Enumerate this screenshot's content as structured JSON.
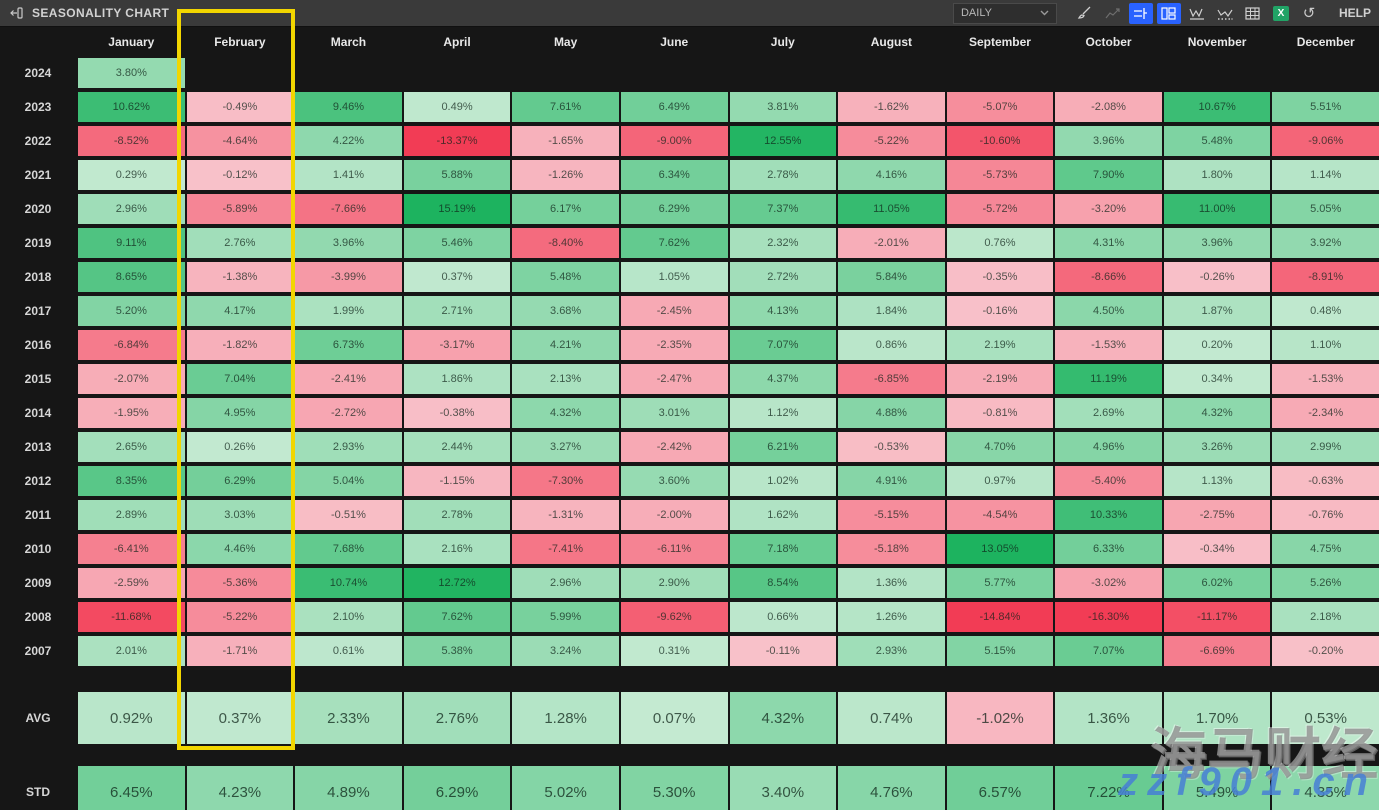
{
  "topbar": {
    "title": "SEASONALITY CHART",
    "timeframe": "DAILY",
    "help_label": "HELP",
    "icons": [
      {
        "name": "brush-icon",
        "active": false
      },
      {
        "name": "trend-line-icon",
        "active": false
      },
      {
        "name": "bar-settings-icon",
        "active": true
      },
      {
        "name": "column-layout-icon",
        "active": true
      },
      {
        "name": "line-chart-icon",
        "active": false
      },
      {
        "name": "scatter-chart-icon",
        "active": false
      },
      {
        "name": "table-icon",
        "active": false
      },
      {
        "name": "excel-export-icon",
        "active": false
      },
      {
        "name": "reset-icon",
        "active": false
      }
    ]
  },
  "colors": {
    "accent_blue": "#2962ff",
    "highlight_yellow": "#f2d600",
    "excel_green": "#21a366",
    "positive_strong": "#1db35f",
    "positive_light": "#c5ead2",
    "negative_strong": "#f23c55",
    "negative_light": "#f8c2ca"
  },
  "chart_data": {
    "type": "heatmap",
    "title": "SEASONALITY CHART",
    "highlighted_column": "February",
    "columns": [
      "January",
      "February",
      "March",
      "April",
      "May",
      "June",
      "July",
      "August",
      "September",
      "October",
      "November",
      "December"
    ],
    "rows": [
      {
        "label": "2024",
        "values": [
          "3.80%",
          null,
          null,
          null,
          null,
          null,
          null,
          null,
          null,
          null,
          null,
          null
        ]
      },
      {
        "label": "2023",
        "values": [
          "10.62%",
          "-0.49%",
          "9.46%",
          "0.49%",
          "7.61%",
          "6.49%",
          "3.81%",
          "-1.62%",
          "-5.07%",
          "-2.08%",
          "10.67%",
          "5.51%"
        ]
      },
      {
        "label": "2022",
        "values": [
          "-8.52%",
          "-4.64%",
          "4.22%",
          "-13.37%",
          "-1.65%",
          "-9.00%",
          "12.55%",
          "-5.22%",
          "-10.60%",
          "3.96%",
          "5.48%",
          "-9.06%"
        ]
      },
      {
        "label": "2021",
        "values": [
          "0.29%",
          "-0.12%",
          "1.41%",
          "5.88%",
          "-1.26%",
          "6.34%",
          "2.78%",
          "4.16%",
          "-5.73%",
          "7.90%",
          "1.80%",
          "1.14%"
        ]
      },
      {
        "label": "2020",
        "values": [
          "2.96%",
          "-5.89%",
          "-7.66%",
          "15.19%",
          "6.17%",
          "6.29%",
          "7.37%",
          "11.05%",
          "-5.72%",
          "-3.20%",
          "11.00%",
          "5.05%"
        ]
      },
      {
        "label": "2019",
        "values": [
          "9.11%",
          "2.76%",
          "3.96%",
          "5.46%",
          "-8.40%",
          "7.62%",
          "2.32%",
          "-2.01%",
          "0.76%",
          "4.31%",
          "3.96%",
          "3.92%"
        ]
      },
      {
        "label": "2018",
        "values": [
          "8.65%",
          "-1.38%",
          "-3.99%",
          "0.37%",
          "5.48%",
          "1.05%",
          "2.72%",
          "5.84%",
          "-0.35%",
          "-8.66%",
          "-0.26%",
          "-8.91%"
        ]
      },
      {
        "label": "2017",
        "values": [
          "5.20%",
          "4.17%",
          "1.99%",
          "2.71%",
          "3.68%",
          "-2.45%",
          "4.13%",
          "1.84%",
          "-0.16%",
          "4.50%",
          "1.87%",
          "0.48%"
        ]
      },
      {
        "label": "2016",
        "values": [
          "-6.84%",
          "-1.82%",
          "6.73%",
          "-3.17%",
          "4.21%",
          "-2.35%",
          "7.07%",
          "0.86%",
          "2.19%",
          "-1.53%",
          "0.20%",
          "1.10%"
        ]
      },
      {
        "label": "2015",
        "values": [
          "-2.07%",
          "7.04%",
          "-2.41%",
          "1.86%",
          "2.13%",
          "-2.47%",
          "4.37%",
          "-6.85%",
          "-2.19%",
          "11.19%",
          "0.34%",
          "-1.53%"
        ]
      },
      {
        "label": "2014",
        "values": [
          "-1.95%",
          "4.95%",
          "-2.72%",
          "-0.38%",
          "4.32%",
          "3.01%",
          "1.12%",
          "4.88%",
          "-0.81%",
          "2.69%",
          "4.32%",
          "-2.34%"
        ]
      },
      {
        "label": "2013",
        "values": [
          "2.65%",
          "0.26%",
          "2.93%",
          "2.44%",
          "3.27%",
          "-2.42%",
          "6.21%",
          "-0.53%",
          "4.70%",
          "4.96%",
          "3.26%",
          "2.99%"
        ]
      },
      {
        "label": "2012",
        "values": [
          "8.35%",
          "6.29%",
          "5.04%",
          "-1.15%",
          "-7.30%",
          "3.60%",
          "1.02%",
          "4.91%",
          "0.97%",
          "-5.40%",
          "1.13%",
          "-0.63%"
        ]
      },
      {
        "label": "2011",
        "values": [
          "2.89%",
          "3.03%",
          "-0.51%",
          "2.78%",
          "-1.31%",
          "-2.00%",
          "1.62%",
          "-5.15%",
          "-4.54%",
          "10.33%",
          "-2.75%",
          "-0.76%"
        ]
      },
      {
        "label": "2010",
        "values": [
          "-6.41%",
          "4.46%",
          "7.68%",
          "2.16%",
          "-7.41%",
          "-6.11%",
          "7.18%",
          "-5.18%",
          "13.05%",
          "6.33%",
          "-0.34%",
          "4.75%"
        ]
      },
      {
        "label": "2009",
        "values": [
          "-2.59%",
          "-5.36%",
          "10.74%",
          "12.72%",
          "2.96%",
          "2.90%",
          "8.54%",
          "1.36%",
          "5.77%",
          "-3.02%",
          "6.02%",
          "5.26%"
        ]
      },
      {
        "label": "2008",
        "values": [
          "-11.68%",
          "-5.22%",
          "2.10%",
          "7.62%",
          "5.99%",
          "-9.62%",
          "0.66%",
          "1.26%",
          "-14.84%",
          "-16.30%",
          "-11.17%",
          "2.18%"
        ]
      },
      {
        "label": "2007",
        "values": [
          "2.01%",
          "-1.71%",
          "0.61%",
          "5.38%",
          "3.24%",
          "0.31%",
          "-0.11%",
          "2.93%",
          "5.15%",
          "7.07%",
          "-6.69%",
          "-0.20%"
        ]
      }
    ],
    "summary_rows": [
      {
        "label": "AVG",
        "values": [
          "0.92%",
          "0.37%",
          "2.33%",
          "2.76%",
          "1.28%",
          "0.07%",
          "4.32%",
          "0.74%",
          "-1.02%",
          "1.36%",
          "1.70%",
          "0.53%"
        ]
      },
      {
        "label": "STD",
        "values": [
          "6.45%",
          "4.23%",
          "4.89%",
          "6.29%",
          "5.02%",
          "5.30%",
          "3.40%",
          "4.76%",
          "6.57%",
          "7.22%",
          "5.49%",
          "4.35%"
        ]
      }
    ]
  },
  "watermark": {
    "line1": "海马财经",
    "line2": "zzf901.cn"
  }
}
